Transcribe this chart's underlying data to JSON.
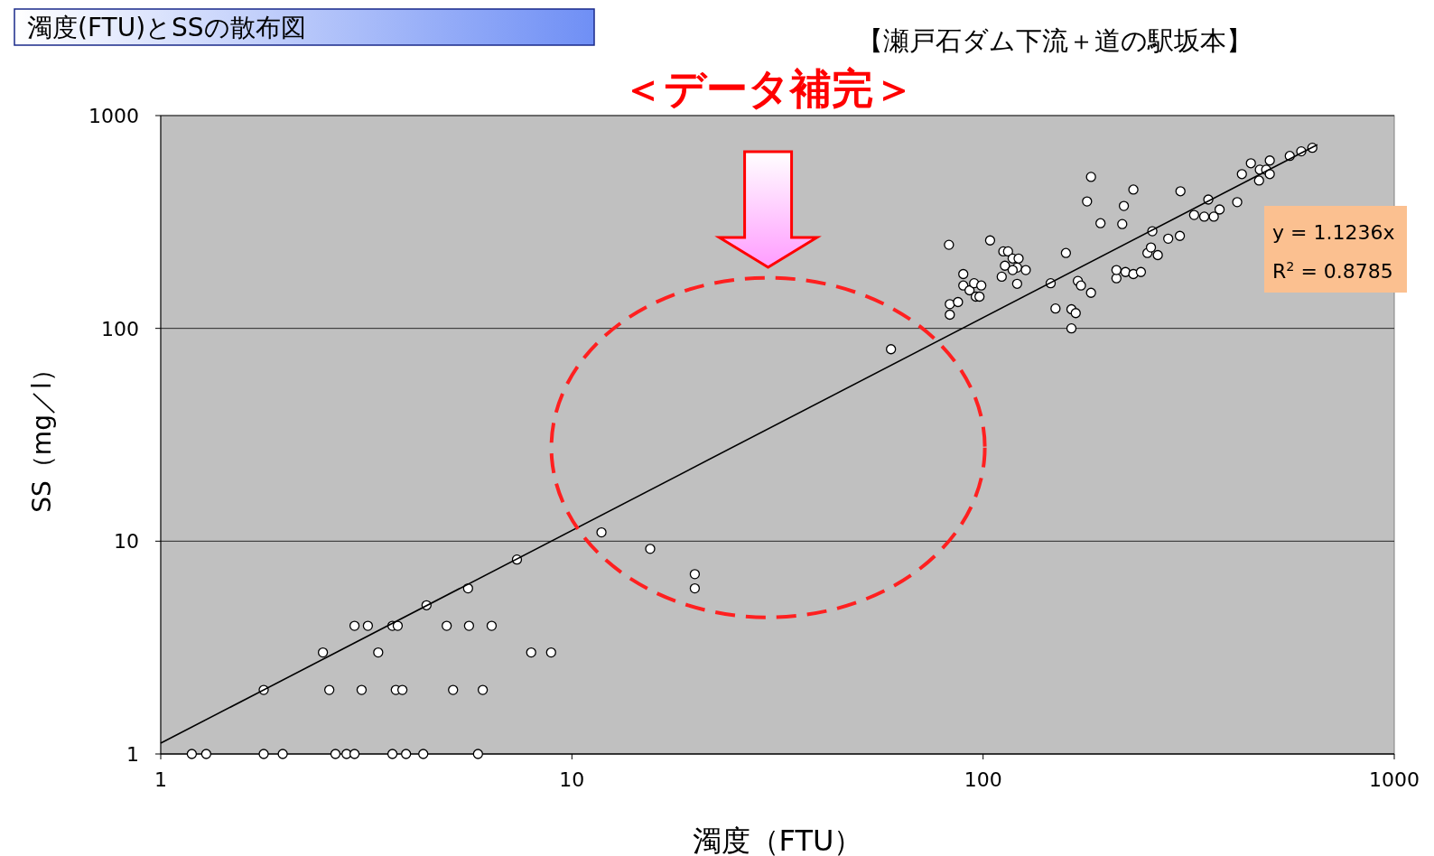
{
  "chart_data": {
    "type": "scatter",
    "title": "濁度(FTU)とSSの散布図",
    "subtitle": "【瀬戸石ダム下流＋道の駅坂本】",
    "xlabel": "濁度（FTU）",
    "ylabel": "SS（mg／l）",
    "log": "xy",
    "xlim": [
      1,
      1000
    ],
    "ylim": [
      1,
      1000
    ],
    "xticks": [
      1,
      10,
      100,
      1000
    ],
    "yticks": [
      1,
      10,
      100,
      1000
    ],
    "grid": "y",
    "marker": "circle",
    "annotations": [
      "＜データ補完＞",
      "y = 1.1236x",
      "R$^{2}$ = 0.8785"
    ],
    "series": [
      {
        "color": "#ffffff",
        "x": [
          1.19,
          1.29,
          1.78,
          1.98,
          2.66,
          2.83,
          2.96,
          3.66,
          3.95,
          4.35,
          5.91,
          1.78,
          2.57,
          3.08,
          3.73,
          3.87,
          5.14,
          6.07,
          2.48,
          3.38,
          7.96,
          8.9,
          2.96,
          3.19,
          3.66,
          3.77,
          4.96,
          5.62,
          6.38,
          4.43,
          5.59,
          19.9,
          19.9,
          7.35,
          15.5,
          11.8,
          59.7,
          82.6,
          83.0,
          83.0,
          86.9,
          89.5,
          89.5,
          92.7,
          95.1,
          96.0,
          99.0,
          98.0,
          104,
          112,
          113,
          111,
          115,
          118,
          121,
          121,
          122,
          127,
          118,
          146,
          150,
          159,
          164,
          164,
          168,
          170,
          173,
          183,
          183,
          179,
          193,
          211,
          211,
          218,
          220,
          222,
          232,
          232,
          242,
          251,
          258,
          256,
          266,
          282,
          301,
          302,
          326,
          345,
          353,
          364,
          376,
          415,
          426,
          448,
          469,
          471,
          488,
          498,
          498,
          557,
          594,
          632
        ],
        "values": [
          1,
          1,
          1,
          1,
          1,
          1,
          1,
          1,
          1,
          1,
          1,
          2,
          2,
          2,
          2,
          2,
          2,
          2,
          3,
          3,
          3,
          3,
          4,
          4,
          4,
          4,
          4,
          4,
          4,
          5,
          6,
          6,
          7,
          8.2,
          9.2,
          11,
          79.8,
          247,
          130,
          116,
          133,
          180,
          159,
          151,
          163,
          141,
          159,
          141,
          259,
          230,
          197,
          175,
          230,
          213,
          193,
          162,
          213,
          188,
          188,
          163,
          124,
          226,
          123,
          100,
          118,
          167,
          159,
          147,
          515,
          395,
          312,
          172,
          188,
          309,
          376,
          184,
          180,
          449,
          184,
          226,
          286,
          240,
          221,
          264,
          272,
          441,
          341,
          335,
          403,
          335,
          362,
          392,
          531,
          597,
          495,
          557,
          557,
          615,
          531,
          646,
          679,
          706
        ]
      },
      {
        "type": "line",
        "marker": "none",
        "color": "#000000",
        "x": [
          1,
          650
        ],
        "values": [
          1.1236,
          730.3
        ]
      }
    ]
  }
}
